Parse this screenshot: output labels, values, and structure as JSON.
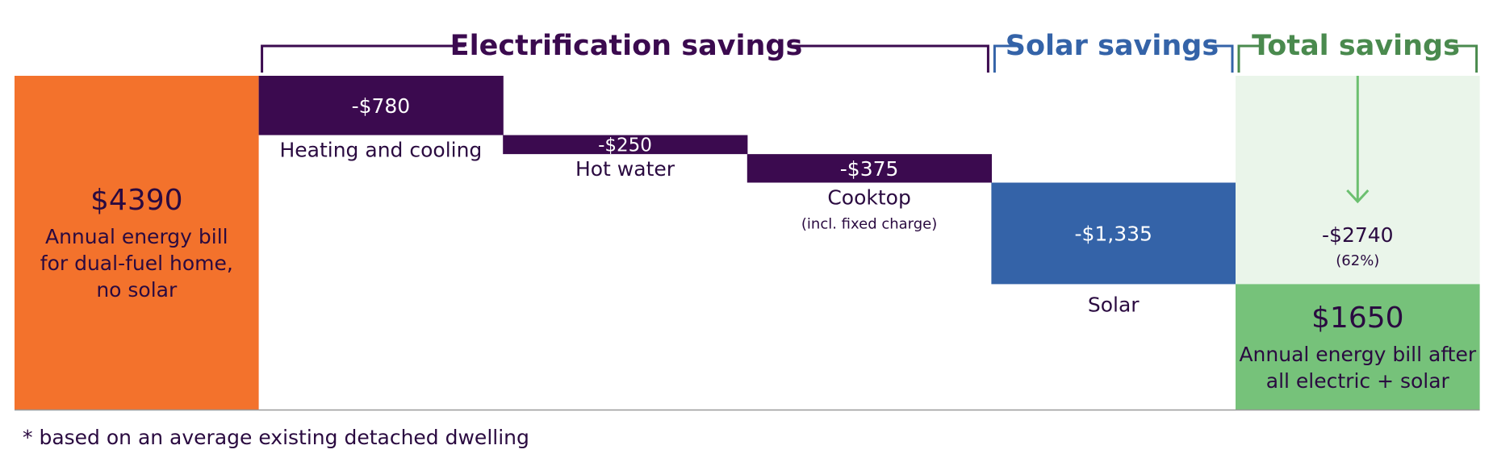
{
  "chart_data": {
    "type": "waterfall",
    "groups": [
      {
        "title": "Electrification savings",
        "color": "#3b0a4f"
      },
      {
        "title": "Solar savings",
        "color": "#3463a8"
      },
      {
        "title": "Total savings",
        "color": "#4a8a4e"
      }
    ],
    "start": {
      "value": 4390,
      "value_label": "$4390",
      "label_lines": [
        "Annual energy bill",
        "for dual-fuel home,",
        "no solar"
      ],
      "color": "#f3722c"
    },
    "steps": [
      {
        "category": "Heating and cooling",
        "value": -780,
        "value_label": "-$780",
        "note": "",
        "color": "#3b0a4f"
      },
      {
        "category": "Hot water",
        "value": -250,
        "value_label": "-$250",
        "note": "",
        "color": "#3b0a4f"
      },
      {
        "category": "Cooktop",
        "value": -375,
        "value_label": "-$375",
        "note": "(incl. fixed charge)",
        "color": "#3b0a4f"
      },
      {
        "category": "Solar",
        "value": -1335,
        "value_label": "-$1,335",
        "note": "",
        "color": "#3463a8"
      }
    ],
    "total_savings": {
      "value": -2740,
      "value_label": "-$2740",
      "percent_label": "(62%)",
      "color": "#eaf5ea",
      "arrow_color": "#6cc070"
    },
    "end": {
      "value": 1650,
      "value_label": "$1650",
      "label_lines": [
        "Annual energy bill after",
        "all electric + solar"
      ],
      "color": "#76c27a"
    },
    "ylim": [
      0,
      4390
    ],
    "text_color": "#2a0a40",
    "axis_color": "#9a9a9a",
    "footnote": "* based on an average existing detached dwelling"
  }
}
